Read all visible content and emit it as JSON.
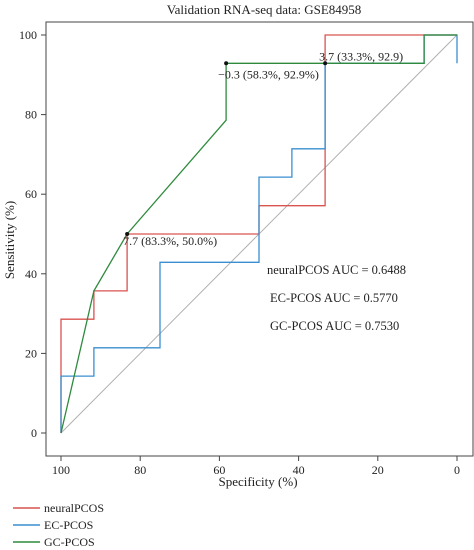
{
  "chart_data": {
    "type": "line",
    "title": "Validation RNA-seq data: GSE84958",
    "xlabel": "Specificity (%)",
    "ylabel": "Sensitivity (%)",
    "xlim": [
      100,
      0
    ],
    "ylim": [
      0,
      100
    ],
    "x_reversed": true,
    "x_ticks": [
      100,
      80,
      60,
      40,
      20,
      0
    ],
    "y_ticks": [
      0,
      20,
      40,
      60,
      80,
      100
    ],
    "grid": false,
    "legend_position": "bottom-left",
    "reference_line": {
      "from": [
        100,
        0
      ],
      "to": [
        0,
        100
      ],
      "color": "#b0b0b0"
    },
    "series": [
      {
        "name": "neuralPCOS",
        "color": "#d9534f",
        "x": [
          100,
          100,
          91.7,
          91.7,
          83.3,
          83.3,
          50,
          50,
          33.3,
          33.3,
          0,
          0
        ],
        "y": [
          0,
          28.6,
          28.6,
          35.7,
          35.7,
          50,
          50,
          57.1,
          57.1,
          100,
          100,
          100
        ]
      },
      {
        "name": "EC-PCOS",
        "color": "#3a8fd1",
        "x": [
          100,
          100,
          91.7,
          91.7,
          75,
          75,
          50,
          50,
          41.7,
          41.7,
          33.3,
          33.3,
          8.3,
          8.3,
          0,
          0
        ],
        "y": [
          0,
          14.3,
          14.3,
          21.4,
          21.4,
          42.9,
          42.9,
          64.3,
          64.3,
          71.4,
          71.4,
          92.9,
          92.9,
          100,
          100,
          92.9
        ]
      },
      {
        "name": "GC-PCOS",
        "color": "#2e8b3d",
        "x": [
          100,
          91.7,
          83.3,
          58.3,
          58.3,
          33.3,
          8.3,
          8.3,
          0
        ],
        "y": [
          0,
          35.7,
          50,
          78.6,
          92.9,
          92.9,
          92.9,
          100,
          100
        ]
      }
    ],
    "threshold_points": [
      {
        "x": 83.3,
        "y": 50.0,
        "label": "7.7 (83.3%, 50.0%)"
      },
      {
        "x": 58.3,
        "y": 92.9,
        "label": "−0.3 (58.3%, 92.9%)"
      },
      {
        "x": 33.3,
        "y": 92.9,
        "label": "3.7 (33.3%, 92.9)"
      }
    ],
    "auc_annotations": [
      "neuralPCOS AUC = 0.6488",
      "EC-PCOS AUC = 0.5770",
      "GC-PCOS AUC = 0.7530"
    ]
  }
}
